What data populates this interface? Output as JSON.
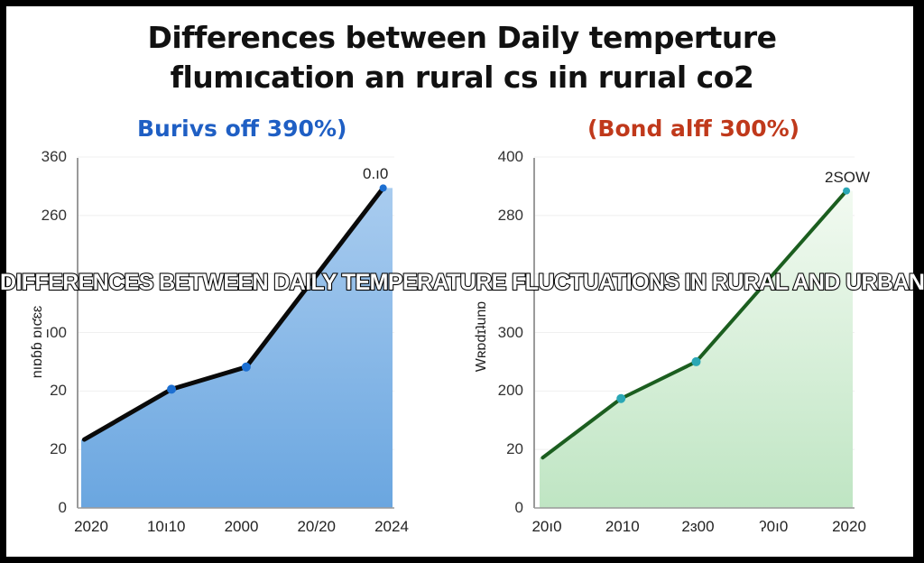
{
  "title": {
    "line1": "Differences between Daily temperture",
    "line2": "flumıcation an rural cs ıin rurıal co2"
  },
  "overlay_banner": "DIFFERENCES BETWEEN DAILY TEMPERATURE FLUCTUATIONS IN RURAL AND URBAN AREAS",
  "colors": {
    "left_subtitle": "#1f5fc4",
    "right_subtitle": "#c0391b",
    "left_fill_top": "#a9ccef",
    "left_fill_bottom": "#6aa6e0",
    "left_line": "#0a0a0a",
    "left_marker": "#1d6fd1",
    "right_fill_top": "#f2faf1",
    "right_fill_bottom": "#bfe5c3",
    "right_line": "#1b5e1f",
    "right_marker": "#2aa7b5",
    "axis": "#9a9a9a",
    "grid": "#efefef"
  },
  "chart_data": [
    {
      "type": "area",
      "title": "Burivs off 390%)",
      "xlabel": "",
      "ylabel": "nıɒɓɓ ɒıƈɛɛ",
      "x": [
        "2020",
        "10ı10",
        "2000",
        "20/20",
        "2024"
      ],
      "y_ticks": [
        "360",
        "260",
        "",
        "ı00",
        "20",
        "20",
        "0"
      ],
      "series": [
        {
          "name": "rural",
          "points_tick_units": [
            1.17,
            2.03,
            2.41,
            5.47
          ],
          "point_x_positions": [
            0.01,
            0.29,
            0.53,
            0.97
          ],
          "end_label": "0.ı0"
        }
      ],
      "grid": true,
      "legend": "none"
    },
    {
      "type": "area",
      "title": "(Bond alff 300%)",
      "xlabel": "",
      "ylabel": "Wʀɒdɪʇunɒ",
      "x": [
        "20ı0",
        "2010",
        "2ɜ00",
        "ʔ0ı0",
        "2020"
      ],
      "y_ticks": [
        "400",
        "280",
        "",
        "300",
        "200",
        "20",
        "0"
      ],
      "series": [
        {
          "name": "urban",
          "points_tick_units": [
            0.86,
            1.87,
            2.5,
            5.42
          ],
          "point_x_positions": [
            0.01,
            0.26,
            0.5,
            0.98
          ],
          "end_label": "2SOW"
        }
      ],
      "grid": true,
      "legend": "none"
    }
  ]
}
